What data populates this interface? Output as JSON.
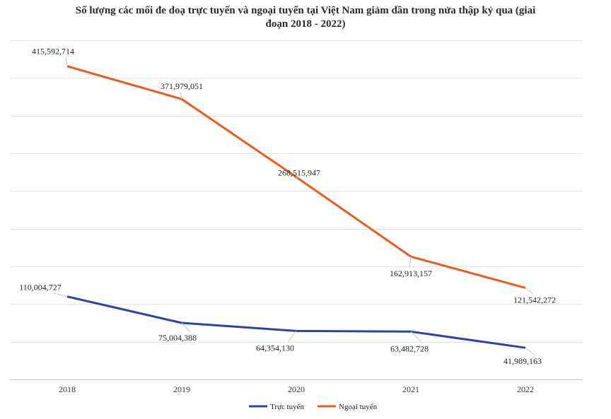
{
  "chart_data": {
    "type": "line",
    "title": "Số lượng các mối đe doạ trực tuyến và ngoại tuyến tại Việt Nam giảm dần trong nửa thập kỷ qua (giai đoạn 2018 - 2022)",
    "title_line1": "Số lượng các mối đe doạ trực tuyến và ngoại tuyến tại Việt Nam giảm dần trong nửa thập kỷ qua (giai",
    "title_line2": "đoạn 2018 - 2022)",
    "categories": [
      "2018",
      "2019",
      "2020",
      "2021",
      "2022"
    ],
    "series": [
      {
        "name": "Trực tuyến",
        "color": "#2a43a8",
        "values": [
          110004727,
          75004388,
          64354130,
          63482728,
          41989163
        ],
        "labels": [
          "110,004,727",
          "75,004,388",
          "64,354,130",
          "63,482,728",
          "41,989,163"
        ]
      },
      {
        "name": "Ngoại tuyến",
        "color": "#ed5b1c",
        "values": [
          415592714,
          371979051,
          268515947,
          162913157,
          121542272
        ],
        "labels": [
          "415,592,714",
          "371,979,051",
          "268,515,947",
          "162,913,157",
          "121,542,272"
        ]
      }
    ],
    "ylim": [
      0,
      450000000
    ],
    "grid": true,
    "legend": "bottom",
    "xlabel": "",
    "ylabel": ""
  }
}
